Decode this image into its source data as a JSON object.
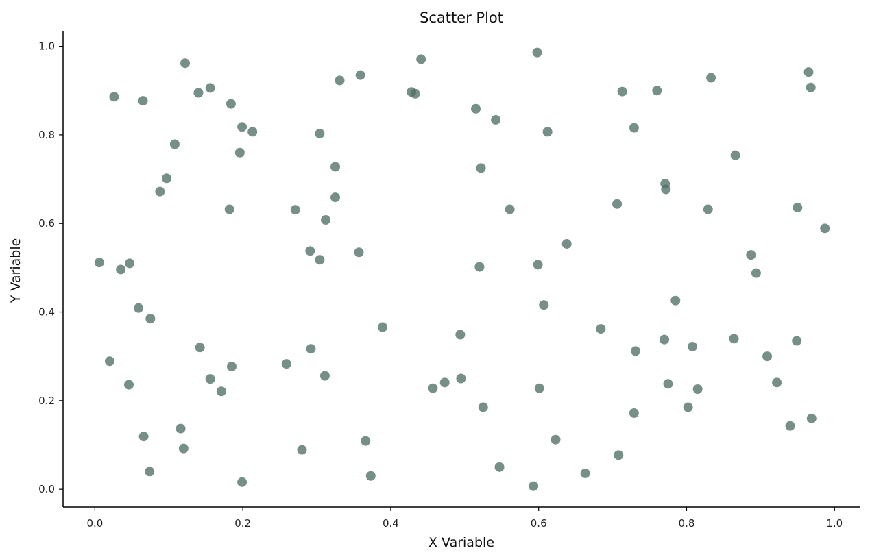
{
  "chart_data": {
    "type": "scatter",
    "title": "Scatter Plot",
    "xlabel": "X Variable",
    "ylabel": "Y Variable",
    "xlim": [
      -0.043,
      1.035
    ],
    "ylim": [
      -0.04,
      1.035
    ],
    "xticks": [
      0.0,
      0.2,
      0.4,
      0.6,
      0.8,
      1.0
    ],
    "yticks": [
      0.0,
      0.2,
      0.4,
      0.6,
      0.8,
      1.0
    ],
    "xtick_labels": [
      "0.0",
      "0.2",
      "0.4",
      "0.6",
      "0.8",
      "1.0"
    ],
    "ytick_labels": [
      "0.0",
      "0.2",
      "0.4",
      "0.6",
      "0.8",
      "1.0"
    ],
    "grid": false,
    "marker_color": "#4f6f66",
    "series": [
      {
        "points": [
          [
            0.026,
            0.886
          ],
          [
            0.065,
            0.877
          ],
          [
            0.122,
            0.962
          ],
          [
            0.14,
            0.895
          ],
          [
            0.156,
            0.906
          ],
          [
            0.184,
            0.87
          ],
          [
            0.199,
            0.818
          ],
          [
            0.213,
            0.807
          ],
          [
            0.108,
            0.779
          ],
          [
            0.196,
            0.76
          ],
          [
            0.097,
            0.702
          ],
          [
            0.088,
            0.672
          ],
          [
            0.182,
            0.632
          ],
          [
            0.006,
            0.512
          ],
          [
            0.035,
            0.496
          ],
          [
            0.047,
            0.51
          ],
          [
            0.059,
            0.409
          ],
          [
            0.075,
            0.385
          ],
          [
            0.142,
            0.32
          ],
          [
            0.02,
            0.289
          ],
          [
            0.046,
            0.236
          ],
          [
            0.156,
            0.249
          ],
          [
            0.185,
            0.277
          ],
          [
            0.171,
            0.221
          ],
          [
            0.116,
            0.137
          ],
          [
            0.066,
            0.119
          ],
          [
            0.12,
            0.092
          ],
          [
            0.074,
            0.04
          ],
          [
            0.199,
            0.016
          ],
          [
            0.304,
            0.803
          ],
          [
            0.331,
            0.923
          ],
          [
            0.359,
            0.935
          ],
          [
            0.325,
            0.728
          ],
          [
            0.325,
            0.659
          ],
          [
            0.271,
            0.631
          ],
          [
            0.312,
            0.608
          ],
          [
            0.291,
            0.538
          ],
          [
            0.304,
            0.518
          ],
          [
            0.357,
            0.535
          ],
          [
            0.292,
            0.317
          ],
          [
            0.311,
            0.256
          ],
          [
            0.259,
            0.283
          ],
          [
            0.28,
            0.089
          ],
          [
            0.366,
            0.109
          ],
          [
            0.373,
            0.03
          ],
          [
            0.389,
            0.366
          ],
          [
            0.441,
            0.971
          ],
          [
            0.428,
            0.897
          ],
          [
            0.433,
            0.893
          ],
          [
            0.494,
            0.349
          ],
          [
            0.457,
            0.228
          ],
          [
            0.473,
            0.241
          ],
          [
            0.495,
            0.25
          ],
          [
            0.515,
            0.859
          ],
          [
            0.542,
            0.834
          ],
          [
            0.522,
            0.725
          ],
          [
            0.52,
            0.502
          ],
          [
            0.525,
            0.185
          ],
          [
            0.547,
            0.05
          ],
          [
            0.598,
            0.986
          ],
          [
            0.612,
            0.807
          ],
          [
            0.561,
            0.632
          ],
          [
            0.599,
            0.507
          ],
          [
            0.607,
            0.416
          ],
          [
            0.601,
            0.228
          ],
          [
            0.593,
            0.007
          ],
          [
            0.638,
            0.554
          ],
          [
            0.623,
            0.112
          ],
          [
            0.663,
            0.036
          ],
          [
            0.684,
            0.362
          ],
          [
            0.713,
            0.898
          ],
          [
            0.706,
            0.644
          ],
          [
            0.729,
            0.816
          ],
          [
            0.731,
            0.312
          ],
          [
            0.729,
            0.172
          ],
          [
            0.708,
            0.077
          ],
          [
            0.76,
            0.9
          ],
          [
            0.771,
            0.69
          ],
          [
            0.772,
            0.677
          ],
          [
            0.785,
            0.426
          ],
          [
            0.77,
            0.338
          ],
          [
            0.775,
            0.238
          ],
          [
            0.808,
            0.322
          ],
          [
            0.802,
            0.185
          ],
          [
            0.815,
            0.226
          ],
          [
            0.833,
            0.929
          ],
          [
            0.866,
            0.754
          ],
          [
            0.829,
            0.632
          ],
          [
            0.887,
            0.529
          ],
          [
            0.894,
            0.488
          ],
          [
            0.864,
            0.34
          ],
          [
            0.909,
            0.3
          ],
          [
            0.922,
            0.241
          ],
          [
            0.965,
            0.942
          ],
          [
            0.968,
            0.907
          ],
          [
            0.95,
            0.636
          ],
          [
            0.987,
            0.589
          ],
          [
            0.949,
            0.335
          ],
          [
            0.94,
            0.143
          ],
          [
            0.969,
            0.16
          ]
        ]
      }
    ]
  }
}
